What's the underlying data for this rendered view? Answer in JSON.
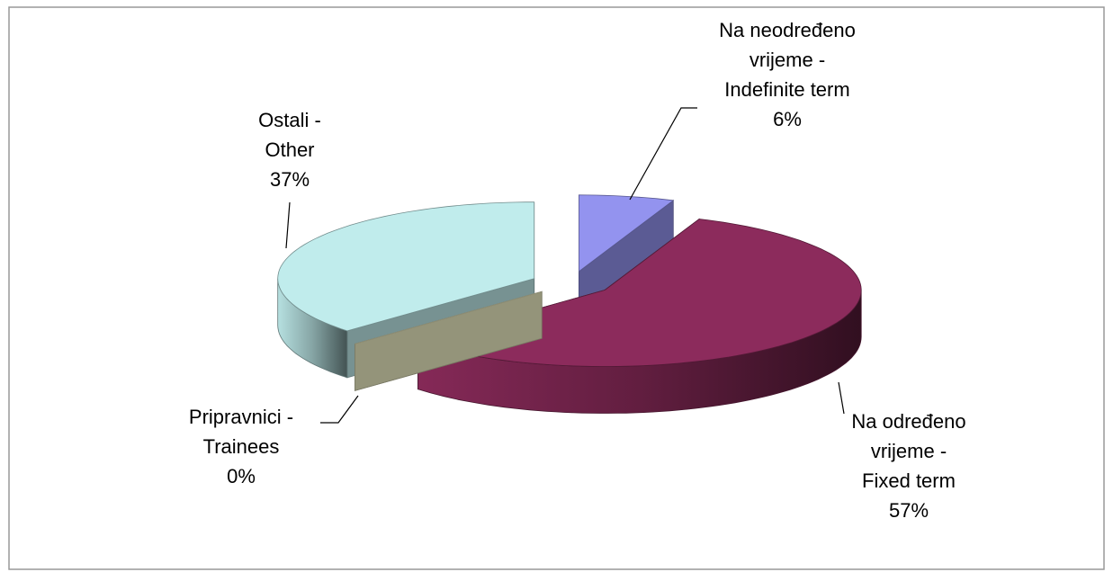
{
  "chart_data": {
    "type": "pie3d",
    "categories": [
      [
        "Na neodređeno",
        "vrijeme -",
        "Indefinite term"
      ],
      [
        "Na određeno",
        "vrijeme -",
        "Fixed term"
      ],
      [
        "Pripravnici -",
        "Trainees"
      ],
      [
        "Ostali -",
        "Other"
      ]
    ],
    "values": [
      6,
      57,
      0,
      37
    ],
    "value_labels": [
      "6%",
      "57%",
      "0%",
      "37%"
    ],
    "colors": [
      "#9393ef",
      "#8c2b5c",
      "#eeeec4",
      "#c0ecec"
    ]
  }
}
